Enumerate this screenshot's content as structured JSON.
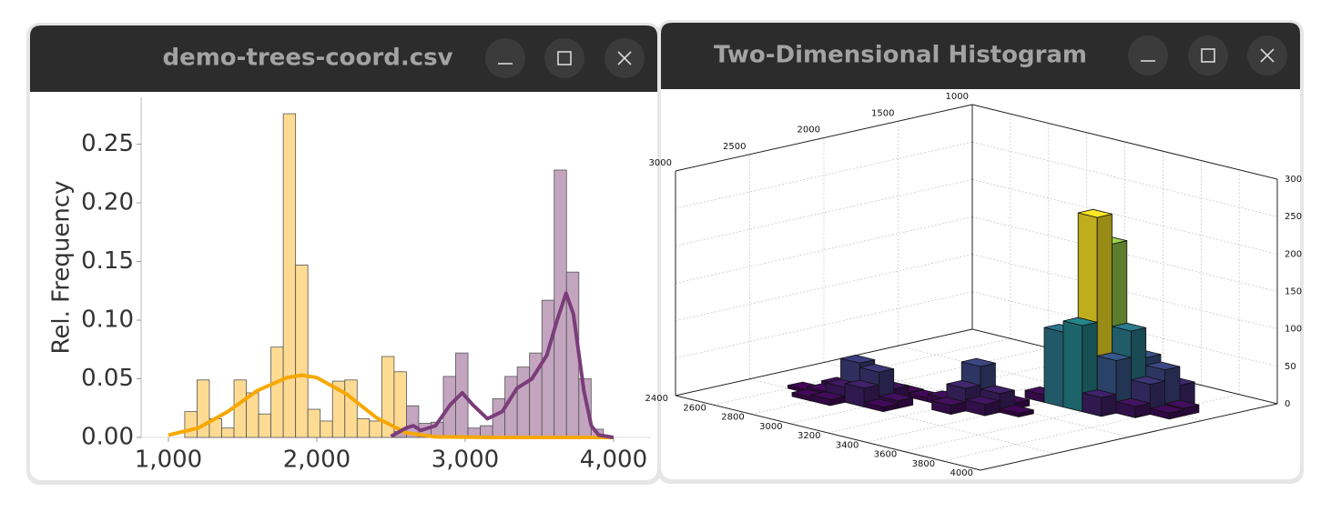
{
  "windows": [
    {
      "title": "demo-trees-coord.csv"
    },
    {
      "title": "Two-Dimensional Histogram"
    }
  ],
  "chart_data": [
    {
      "type": "histogram",
      "y_label": "Rel. Frequency",
      "bins": [
        1110,
        1193,
        1276,
        1359,
        1442,
        1525,
        1608,
        1691,
        1774,
        1857,
        1940,
        2023,
        2106,
        2189,
        2272,
        2355,
        2438,
        2521,
        2604,
        2687,
        2770,
        2853,
        2936,
        3019,
        3102,
        3185,
        3268,
        3351,
        3434,
        3517,
        3600,
        3683,
        3766,
        3849,
        3932
      ],
      "series": [
        {
          "color": "#fed580",
          "values": [
            0.022,
            0.049,
            0.016,
            0.008,
            0.049,
            0.038,
            0.02,
            0.077,
            0.276,
            0.147,
            0.024,
            0.014,
            0.048,
            0.049,
            0.016,
            0.014,
            0.069,
            0.056,
            0,
            0,
            0,
            0,
            0,
            0,
            0,
            0,
            0,
            0,
            0,
            0,
            0,
            0,
            0,
            0
          ]
        },
        {
          "color": "#b995b5",
          "values": [
            0,
            0,
            0,
            0,
            0,
            0,
            0,
            0,
            0,
            0,
            0,
            0,
            0,
            0,
            0,
            0,
            0,
            0.005,
            0.027,
            0.012,
            0.013,
            0.052,
            0.072,
            0.008,
            0.01,
            0.033,
            0.052,
            0.06,
            0.072,
            0.117,
            0.228,
            0.141,
            0.05,
            0.007
          ]
        }
      ],
      "lines": [
        {
          "color": "#f7a800",
          "x": [
            1000,
            1200,
            1400,
            1600,
            1800,
            1900,
            2000,
            2200,
            2400,
            2600,
            2800,
            3200,
            4000
          ],
          "values": [
            0.002,
            0.008,
            0.022,
            0.04,
            0.051,
            0.053,
            0.051,
            0.037,
            0.017,
            0.004,
            0.0005,
            0,
            0
          ]
        },
        {
          "color": "#7b3d7a",
          "x": [
            2500,
            2600,
            2650,
            2700,
            2800,
            2900,
            2980,
            3050,
            3150,
            3250,
            3350,
            3450,
            3550,
            3620,
            3680,
            3730,
            3800,
            3850,
            3900,
            4000
          ],
          "values": [
            0.001,
            0.008,
            0.01,
            0.006,
            0.01,
            0.028,
            0.038,
            0.028,
            0.016,
            0.022,
            0.042,
            0.05,
            0.07,
            0.1,
            0.123,
            0.105,
            0.04,
            0.01,
            0.002,
            0
          ]
        }
      ],
      "xlim": [
        816,
        4252
      ],
      "ylim": [
        0,
        0.29
      ],
      "xticks": [
        {
          "value": 1000,
          "label": "1,000"
        },
        {
          "value": 2000,
          "label": "2,000"
        },
        {
          "value": 3000,
          "label": "3,000"
        },
        {
          "value": 4000,
          "label": "4,000"
        }
      ],
      "yticks": [
        {
          "value": 0,
          "label": "0.00"
        },
        0.05,
        {
          "value": 0.1,
          "label": "0.10"
        },
        0.15,
        {
          "value": 0.2,
          "label": "0.20"
        },
        0.25
      ]
    },
    {
      "type": "bar3d",
      "xlim": [
        2400,
        4000
      ],
      "xticks": [
        2400,
        2600,
        2800,
        3000,
        3200,
        3400,
        3600,
        3800,
        4000
      ],
      "ylim": [
        1000,
        3000
      ],
      "yticks": [
        1000,
        1500,
        2000,
        2500,
        3000
      ],
      "zlim": [
        0,
        300
      ],
      "zticks": [
        0,
        50,
        100,
        150,
        200,
        250,
        300
      ],
      "colormap": [
        "#440154",
        "#3b528b",
        "#21918c",
        "#5ec962",
        "#fde725"
      ],
      "bars": {
        "x": [
          2700,
          2700,
          2700,
          2800,
          2800,
          2800,
          2800,
          2900,
          2900,
          2900,
          2900,
          3000,
          3000,
          2600,
          2800,
          3100,
          3100,
          3200,
          3200,
          3200,
          3200,
          3300,
          3300,
          3300,
          3400,
          3000,
          3300,
          3400,
          3400,
          3400,
          3500,
          3500,
          3500,
          3500,
          3600,
          3600,
          3600,
          3600,
          3700,
          3700,
          3700,
          3700,
          3800,
          3800,
          3400,
          3300
        ],
        "y": [
          2300,
          2400,
          2500,
          2200,
          2300,
          2400,
          2500,
          2200,
          2300,
          2400,
          2100,
          2300,
          2400,
          2400,
          2100,
          2000,
          2100,
          1900,
          2000,
          2100,
          2200,
          2000,
          2100,
          1900,
          2000,
          2100,
          1700,
          1500,
          1600,
          1700,
          1500,
          1600,
          1700,
          1400,
          1500,
          1600,
          1400,
          1700,
          1500,
          1400,
          1300,
          1600,
          1400,
          1500,
          1400,
          1500
        ],
        "values": [
          12,
          8,
          5,
          10,
          48,
          20,
          8,
          15,
          42,
          25,
          6,
          10,
          6,
          4,
          5,
          8,
          10,
          6,
          55,
          30,
          12,
          25,
          15,
          8,
          5,
          5,
          10,
          60,
          40,
          100,
          215,
          255,
          115,
          80,
          105,
          70,
          65,
          25,
          40,
          55,
          30,
          15,
          10,
          8,
          20,
          12
        ]
      }
    }
  ]
}
